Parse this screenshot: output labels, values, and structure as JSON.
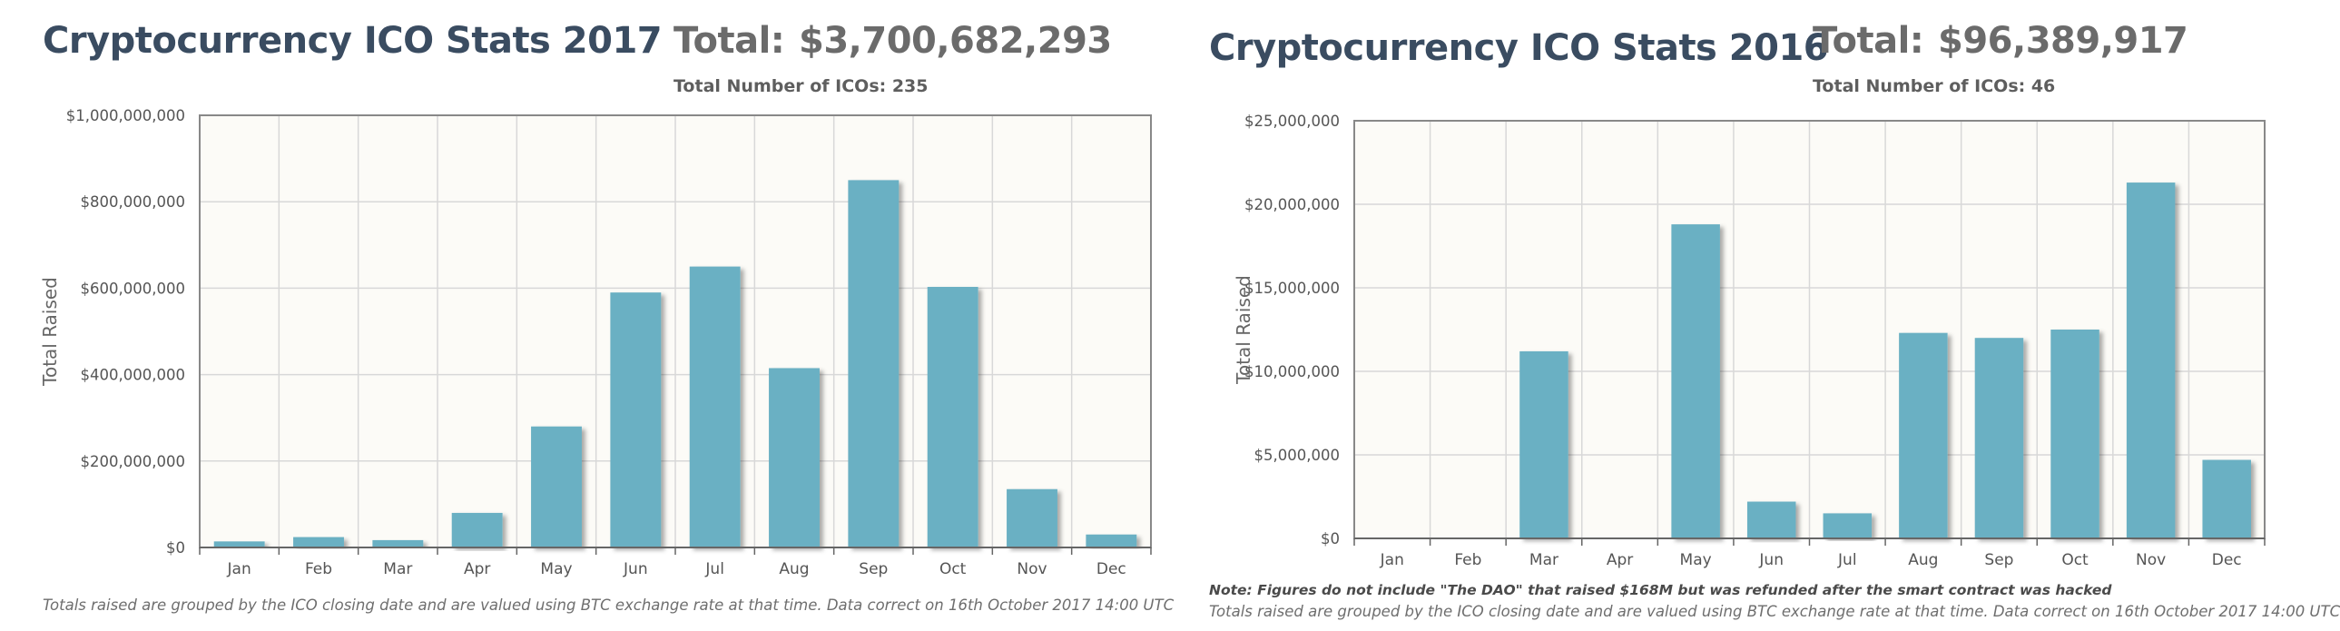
{
  "panels": [
    {
      "title": "Cryptocurrency ICO Stats 2017",
      "total_label": "Total:",
      "total_value": "$3,700,682,293",
      "count_label": "Total Number of ICOs: 235",
      "note": "",
      "footnote": "Totals raised are grouped by the ICO closing date and are valued using BTC exchange rate at that time. Data correct on 16th October 2017 14:00 UTC"
    },
    {
      "title": "Cryptocurrency ICO Stats 2016",
      "total_label": "Total:",
      "total_value": "$96,389,917",
      "count_label": "Total Number of ICOs: 46",
      "note": "Note: Figures do not include \"The DAO\" that raised $168M but was refunded after the smart contract was hacked",
      "footnote": "Totals raised are grouped by the ICO closing date and are valued using BTC exchange rate at that time. Data correct on 16th October 2017 14:00 UTC"
    }
  ],
  "colors": {
    "bar": "#6ab0c3",
    "plot_background": "#fcfbf7",
    "grid": "#d8d8d8",
    "axis": "#888888",
    "title": "#3a4c61",
    "total": "#6b6b6b"
  },
  "chart_data": [
    {
      "type": "bar",
      "title": "Cryptocurrency ICO Stats 2017",
      "xlabel": "",
      "ylabel": "Total Raised",
      "categories": [
        "Jan",
        "Feb",
        "Mar",
        "Apr",
        "May",
        "Jun",
        "Jul",
        "Aug",
        "Sep",
        "Oct",
        "Nov",
        "Dec"
      ],
      "values": [
        14000000,
        24000000,
        17000000,
        80000000,
        280000000,
        590000000,
        650000000,
        415000000,
        850000000,
        603000000,
        135000000,
        30000000
      ],
      "ylim": [
        0,
        1000000000
      ],
      "yticks": [
        0,
        200000000,
        400000000,
        600000000,
        800000000,
        1000000000
      ],
      "ytick_labels": [
        "$0",
        "$200,000,000",
        "$400,000,000",
        "$600,000,000",
        "$800,000,000",
        "$1,000,000,000"
      ],
      "grid": true,
      "legend": "none"
    },
    {
      "type": "bar",
      "title": "Cryptocurrency ICO Stats 2016",
      "xlabel": "",
      "ylabel": "Total Raised",
      "categories": [
        "Jan",
        "Feb",
        "Mar",
        "Apr",
        "May",
        "Jun",
        "Jul",
        "Aug",
        "Sep",
        "Oct",
        "Nov",
        "Dec"
      ],
      "values": [
        0,
        0,
        11200000,
        0,
        18800000,
        2200000,
        1500000,
        12300000,
        12000000,
        12500000,
        21300000,
        4700000
      ],
      "ylim": [
        0,
        25000000
      ],
      "yticks": [
        0,
        5000000,
        10000000,
        15000000,
        20000000,
        25000000
      ],
      "ytick_labels": [
        "$0",
        "$5,000,000",
        "$10,000,000",
        "$15,000,000",
        "$20,000,000",
        "$25,000,000"
      ],
      "grid": true,
      "legend": "none"
    }
  ]
}
